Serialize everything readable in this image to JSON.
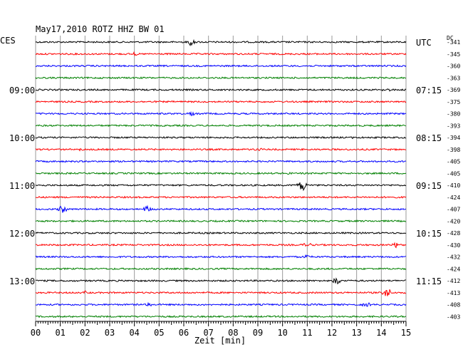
{
  "chart_data": {
    "type": "line",
    "title": "May17,2010   ROTZ HHZ BW 01",
    "left_header": "CES",
    "right_header": "UTC",
    "dc_header": "DC",
    "xlabel": "Zeit [min]",
    "xlim": [
      0,
      15
    ],
    "x_ticks": [
      "00",
      "01",
      "02",
      "03",
      "04",
      "05",
      "06",
      "07",
      "08",
      "09",
      "10",
      "11",
      "12",
      "13",
      "14",
      "15"
    ],
    "line_colors": [
      "#000000",
      "#ff0000",
      "#0000ff",
      "#008000"
    ],
    "left_time_labels": [
      {
        "trace": 4,
        "label": "09:00"
      },
      {
        "trace": 8,
        "label": "10:00"
      },
      {
        "trace": 12,
        "label": "11:00"
      },
      {
        "trace": 16,
        "label": "12:00"
      },
      {
        "trace": 20,
        "label": "13:00"
      }
    ],
    "right_time_labels": [
      {
        "trace": 0,
        "label": "UTC"
      },
      {
        "trace": 4,
        "label": "07:15"
      },
      {
        "trace": 8,
        "label": "08:15"
      },
      {
        "trace": 12,
        "label": "09:15"
      },
      {
        "trace": 16,
        "label": "10:15"
      },
      {
        "trace": 20,
        "label": "11:15"
      }
    ],
    "dc_values": [
      "-341",
      "-345",
      "-360",
      "-363",
      "-369",
      "-375",
      "-380",
      "-393",
      "-394",
      "-398",
      "-405",
      "-405",
      "-410",
      "-424",
      "-407",
      "-420",
      "-428",
      "-430",
      "-432",
      "-424",
      "-412",
      "-413",
      "-408",
      "-403"
    ],
    "events": [
      {
        "trace": 0,
        "minute": 6.3,
        "amp": 5
      },
      {
        "trace": 1,
        "minute": 4.0,
        "amp": 2
      },
      {
        "trace": 4,
        "minute": 14.2,
        "amp": 3
      },
      {
        "trace": 6,
        "minute": 6.3,
        "amp": 3
      },
      {
        "trace": 8,
        "minute": 13.0,
        "amp": 2
      },
      {
        "trace": 9,
        "minute": 1.8,
        "amp": 2
      },
      {
        "trace": 9,
        "minute": 9.0,
        "amp": 2
      },
      {
        "trace": 11,
        "minute": 10.3,
        "amp": 2
      },
      {
        "trace": 12,
        "minute": 10.8,
        "amp": 9
      },
      {
        "trace": 14,
        "minute": 1.1,
        "amp": 5
      },
      {
        "trace": 14,
        "minute": 4.5,
        "amp": 4
      },
      {
        "trace": 17,
        "minute": 11.0,
        "amp": 3
      },
      {
        "trace": 17,
        "minute": 14.6,
        "amp": 4
      },
      {
        "trace": 18,
        "minute": 11.0,
        "amp": 3
      },
      {
        "trace": 20,
        "minute": 12.2,
        "amp": 6
      },
      {
        "trace": 21,
        "minute": 14.2,
        "amp": 9
      },
      {
        "trace": 21,
        "minute": 2.0,
        "amp": 2
      },
      {
        "trace": 22,
        "minute": 4.6,
        "amp": 3
      },
      {
        "trace": 22,
        "minute": 13.4,
        "amp": 3
      }
    ]
  }
}
